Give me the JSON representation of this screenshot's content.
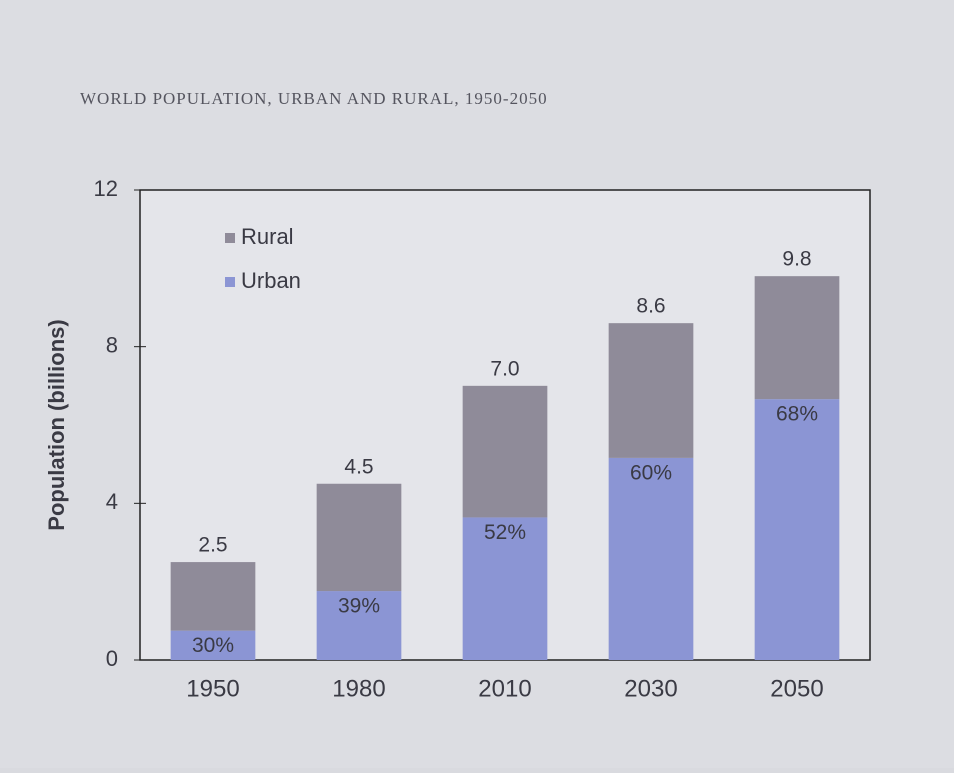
{
  "chart_data": {
    "type": "stacked-bar",
    "title": "WORLD POPULATION, URBAN AND RURAL, 1950-2050",
    "y_label": "Population (billions)",
    "categories": [
      "1950",
      "1980",
      "2010",
      "2030",
      "2050"
    ],
    "series": [
      {
        "name": "Urban",
        "color": "#8b95d4",
        "values": [
          0.75,
          1.76,
          3.64,
          5.16,
          6.66
        ]
      },
      {
        "name": "Rural",
        "color": "#8f8b99",
        "values": [
          1.75,
          2.74,
          3.36,
          3.44,
          3.14
        ]
      }
    ],
    "totals": [
      2.5,
      4.5,
      {
        "value": 7,
        "label": "7.0"
      },
      8.6,
      9.8
    ],
    "urban_share": [
      {
        "value": 30,
        "label": "30%"
      },
      {
        "value": 39,
        "label": "39%"
      },
      {
        "value": 52,
        "label": "52%"
      },
      {
        "value": 60,
        "label": "60%"
      },
      {
        "value": 68,
        "label": "68%"
      }
    ],
    "ylim": [
      0,
      12
    ],
    "yticks": [
      0,
      4,
      8,
      12
    ],
    "legend": "upper-left"
  }
}
